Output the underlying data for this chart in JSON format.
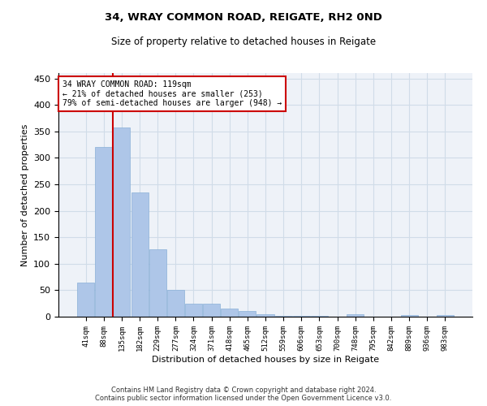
{
  "title": "34, WRAY COMMON ROAD, REIGATE, RH2 0ND",
  "subtitle": "Size of property relative to detached houses in Reigate",
  "xlabel": "Distribution of detached houses by size in Reigate",
  "ylabel": "Number of detached properties",
  "categories": [
    "41sqm",
    "88sqm",
    "135sqm",
    "182sqm",
    "229sqm",
    "277sqm",
    "324sqm",
    "371sqm",
    "418sqm",
    "465sqm",
    "512sqm",
    "559sqm",
    "606sqm",
    "653sqm",
    "700sqm",
    "748sqm",
    "795sqm",
    "842sqm",
    "889sqm",
    "936sqm",
    "983sqm"
  ],
  "values": [
    65,
    320,
    358,
    235,
    127,
    50,
    25,
    25,
    15,
    10,
    5,
    2,
    1,
    1,
    0,
    5,
    0,
    0,
    3,
    0,
    3
  ],
  "bar_color": "#aec6e8",
  "bar_edge_color": "#8ab0d8",
  "grid_color": "#d0dce8",
  "background_color": "#eef2f8",
  "vline_color": "#cc0000",
  "vline_index": 1.5,
  "annotation_text": "34 WRAY COMMON ROAD: 119sqm\n← 21% of detached houses are smaller (253)\n79% of semi-detached houses are larger (948) →",
  "annotation_box_color": "#cc0000",
  "footer_line1": "Contains HM Land Registry data © Crown copyright and database right 2024.",
  "footer_line2": "Contains public sector information licensed under the Open Government Licence v3.0.",
  "ylim": [
    0,
    460
  ],
  "yticks": [
    0,
    50,
    100,
    150,
    200,
    250,
    300,
    350,
    400,
    450
  ]
}
